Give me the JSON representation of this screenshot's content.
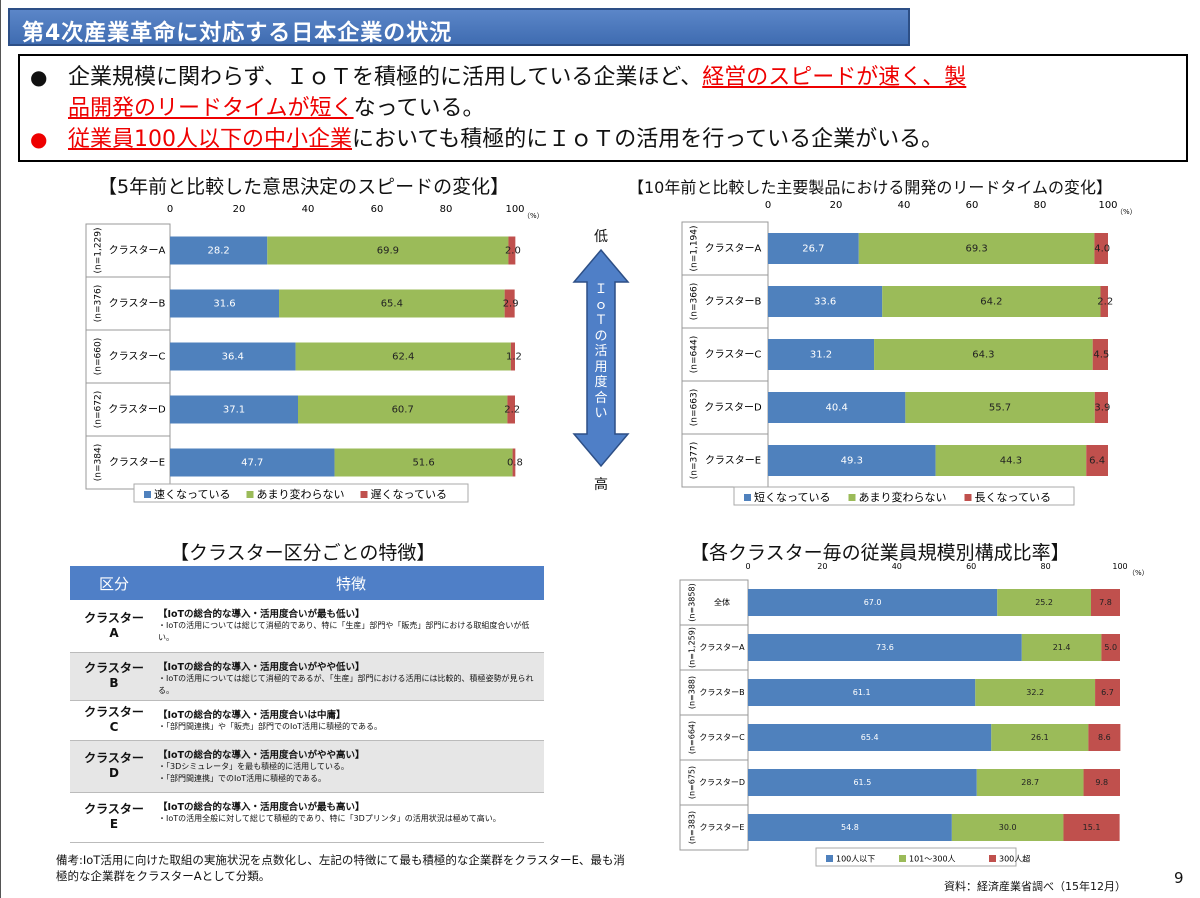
{
  "title": "第4次産業革命に対応する日本企業の状況",
  "summary": {
    "line1_a": "企業規模に関わらず、ＩｏＴを積極的に活用している企業ほど、",
    "line1_b": "経営のスピードが速く、製",
    "line1_c": "品開発のリードタイムが短く",
    "line1_d": "なっている。",
    "line2_a": "従業員100人以下の中小企業",
    "line2_b": "においても積極的にＩｏＴの活用を行っている企業がいる。"
  },
  "arrow": {
    "top": "低",
    "middle": "ＩｏＴの活用度合い",
    "bottom": "高"
  },
  "charts": [
    {
      "title": "【5年前と比較した意思決定のスピードの変化】",
      "type": "bar",
      "stacked": true,
      "orientation": "horizontal",
      "xlim": [
        0,
        100
      ],
      "ticks": [
        0,
        20,
        40,
        60,
        80,
        100
      ],
      "unit": "（%）",
      "categories": [
        "クラスターA",
        "クラスターB",
        "クラスターC",
        "クラスターD",
        "クラスターE"
      ],
      "n_labels": [
        "(n=1,229)",
        "(n=376)",
        "(n=660)",
        "(n=672)",
        "(n=384)"
      ],
      "series": [
        {
          "name": "速くなっている",
          "color": "#4f81bd",
          "values": [
            28.2,
            31.6,
            36.4,
            37.1,
            47.7
          ]
        },
        {
          "name": "あまり変わらない",
          "color": "#9bbb59",
          "values": [
            69.9,
            65.4,
            62.4,
            60.7,
            51.6
          ]
        },
        {
          "name": "遅くなっている",
          "color": "#c0504d",
          "values": [
            2.0,
            2.9,
            1.2,
            2.2,
            0.8
          ]
        }
      ],
      "value_labels": [
        [
          "28.2",
          "69.9",
          "2.0"
        ],
        [
          "31.6",
          "65.4",
          "2.9"
        ],
        [
          "36.4",
          "62.4",
          "1.2"
        ],
        [
          "37.1",
          "60.7",
          "2.2"
        ],
        [
          "47.7",
          "51.6",
          "0.8"
        ]
      ]
    },
    {
      "title": "【10年前と比較した主要製品における開発のリードタイムの変化】",
      "type": "bar",
      "stacked": true,
      "orientation": "horizontal",
      "xlim": [
        0,
        100
      ],
      "ticks": [
        0,
        20,
        40,
        60,
        80,
        100
      ],
      "unit": "（%）",
      "categories": [
        "クラスターA",
        "クラスターB",
        "クラスターC",
        "クラスターD",
        "クラスターE"
      ],
      "n_labels": [
        "(n=1,194)",
        "(n=366)",
        "(n=644)",
        "(n=663)",
        "(n=377)"
      ],
      "series": [
        {
          "name": "短くなっている",
          "color": "#4f81bd",
          "values": [
            26.7,
            33.6,
            31.2,
            40.4,
            49.3
          ]
        },
        {
          "name": "あまり変わらない",
          "color": "#9bbb59",
          "values": [
            69.3,
            64.2,
            64.3,
            55.7,
            44.3
          ]
        },
        {
          "name": "長くなっている",
          "color": "#c0504d",
          "values": [
            4.0,
            2.2,
            4.5,
            3.9,
            6.4
          ]
        }
      ],
      "value_labels": [
        [
          "26.7",
          "69.3",
          "4.0"
        ],
        [
          "33.6",
          "64.2",
          "2.2"
        ],
        [
          "31.2",
          "64.3",
          "4.5"
        ],
        [
          "40.4",
          "55.7",
          "3.9"
        ],
        [
          "49.3",
          "44.3",
          "6.4"
        ]
      ]
    },
    {
      "title": "【各クラスター毎の従業員規模別構成比率】",
      "type": "bar",
      "stacked": true,
      "orientation": "horizontal",
      "xlim": [
        0,
        100
      ],
      "ticks": [
        0,
        20,
        40,
        60,
        80,
        100
      ],
      "unit": "（%）",
      "categories": [
        "全体",
        "クラスターA",
        "クラスターB",
        "クラスターC",
        "クラスターD",
        "クラスターE"
      ],
      "n_labels": [
        "(n=3858)",
        "(n=1,259)",
        "(n=388)",
        "(n=664)",
        "(n=675)",
        "(n=383)"
      ],
      "series": [
        {
          "name": "100人以下",
          "color": "#4f81bd",
          "values": [
            67.0,
            73.6,
            61.1,
            65.4,
            61.5,
            54.8
          ]
        },
        {
          "name": "101～300人",
          "color": "#9bbb59",
          "values": [
            25.2,
            21.4,
            32.2,
            26.1,
            28.7,
            30.0
          ]
        },
        {
          "name": "300人超",
          "color": "#c0504d",
          "values": [
            7.8,
            5.0,
            6.7,
            8.6,
            9.8,
            15.1
          ]
        }
      ],
      "value_labels": [
        [
          "67.0",
          "25.2",
          "7.8"
        ],
        [
          "73.6",
          "21.4",
          "5.0"
        ],
        [
          "61.1",
          "32.2",
          "6.7"
        ],
        [
          "65.4",
          "26.1",
          "8.6"
        ],
        [
          "61.5",
          "28.7",
          "9.8"
        ],
        [
          "54.8",
          "30.0",
          "15.1"
        ]
      ]
    }
  ],
  "features": {
    "title": "【クラスター区分ごとの特徴】",
    "col1": "区分",
    "col2": "特徴",
    "rows": [
      {
        "cluster": "クラスター\nA",
        "head": "【IoTの総合的な導入・活用度合いが最も低い】",
        "body": "・IoTの活用については総じて消極的であり、特に「生産」部門や「販売」部門における取組度合いが低い。"
      },
      {
        "cluster": "クラスター\nB",
        "head": "【IoTの総合的な導入・活用度合いがやや低い】",
        "body": "・IoTの活用については総じて消極的であるが、「生産」部門における活用には比較的、積極姿勢が見られる。"
      },
      {
        "cluster": "クラスター\nC",
        "head": "【IoTの総合的な導入・活用度合いは中庸】",
        "body": "・「部門間連携」や「販売」部門でのIoT活用に積極的である。"
      },
      {
        "cluster": "クラスター\nD",
        "head": "【IoTの総合的な導入・活用度合いがやや高い】",
        "body": "・「3Dシミュレータ」を最も積極的に活用している。\n・「部門間連携」でのIoT活用に積極的である。"
      },
      {
        "cluster": "クラスター\nE",
        "head": "【IoTの総合的な導入・活用度合いが最も高い】",
        "body": "・IoTの活用全般に対して総じて積極的であり、特に「3Dプリンタ」の活用状況は極めて高い。"
      }
    ]
  },
  "note": "備考:IoT活用に向けた取組の実施状況を点数化し、左記の特徴にて最も積極的な企業群をクラスターE、最も消極的な企業群をクラスターAとして分類。",
  "source": "資料：経済産業省調べ（15年12月）",
  "page_number": "9"
}
